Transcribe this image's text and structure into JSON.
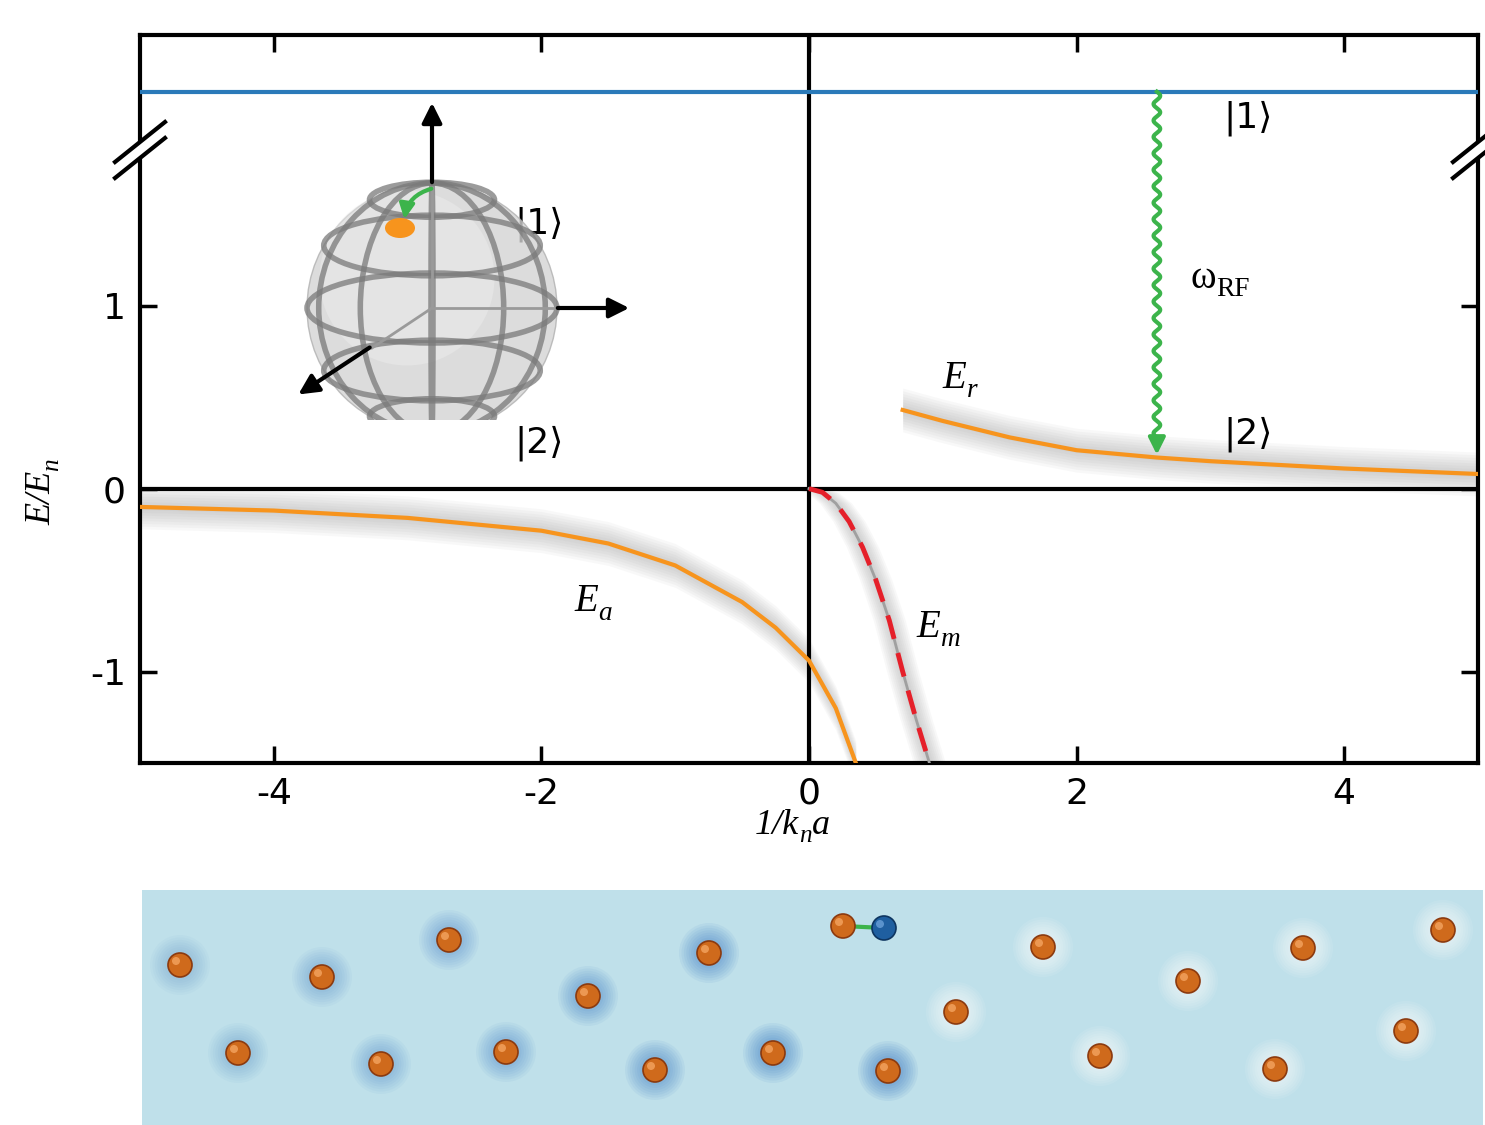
{
  "chart_data": {
    "type": "line",
    "xlabel": [
      "1/k",
      "n",
      "a"
    ],
    "ylabel": [
      "E/E",
      "n"
    ],
    "xlim": [
      -5,
      5
    ],
    "xticks": [
      -4,
      -2,
      0,
      2,
      4
    ],
    "ylim": [
      -1.5,
      2.48
    ],
    "yticks": [
      -1,
      0,
      1
    ],
    "series": [
      {
        "name": [
          "E",
          "a"
        ],
        "color": "#f7941d",
        "line_style": "solid",
        "x": [
          -5,
          -4,
          -3,
          -2,
          -1.5,
          -1,
          -0.5,
          -0.25,
          0,
          0.2,
          0.35
        ],
        "values": [
          -0.1,
          -0.12,
          -0.16,
          -0.23,
          -0.3,
          -0.42,
          -0.62,
          -0.76,
          -0.94,
          -1.2,
          -1.5
        ]
      },
      {
        "name": [
          "E",
          "m"
        ],
        "color": "#e5202a",
        "line_style": "dashed",
        "x": [
          0,
          0.1,
          0.2,
          0.3,
          0.4,
          0.5,
          0.6,
          0.7,
          0.8,
          0.9
        ],
        "values": [
          0,
          -0.02,
          -0.08,
          -0.18,
          -0.32,
          -0.5,
          -0.72,
          -1.0,
          -1.26,
          -1.5
        ]
      },
      {
        "name": [
          "E",
          "r"
        ],
        "color": "#f7941d",
        "line_style": "solid",
        "x": [
          0.7,
          1,
          1.5,
          2,
          2.6,
          3,
          4,
          5
        ],
        "values": [
          0.43,
          0.37,
          0.28,
          0.21,
          0.17,
          0.15,
          0.11,
          0.08
        ]
      }
    ],
    "levels": [
      {
        "name": "|1⟩",
        "value": 2.17,
        "color": "#2a7ab9"
      }
    ],
    "annotations": [
      "|1⟩",
      "|2⟩"
    ],
    "transition": {
      "label": [
        "ω",
        "RF"
      ],
      "x": 2.6,
      "color": "#3cb44b"
    },
    "inset": {
      "labels": [
        "|1⟩",
        "|2⟩"
      ]
    }
  }
}
